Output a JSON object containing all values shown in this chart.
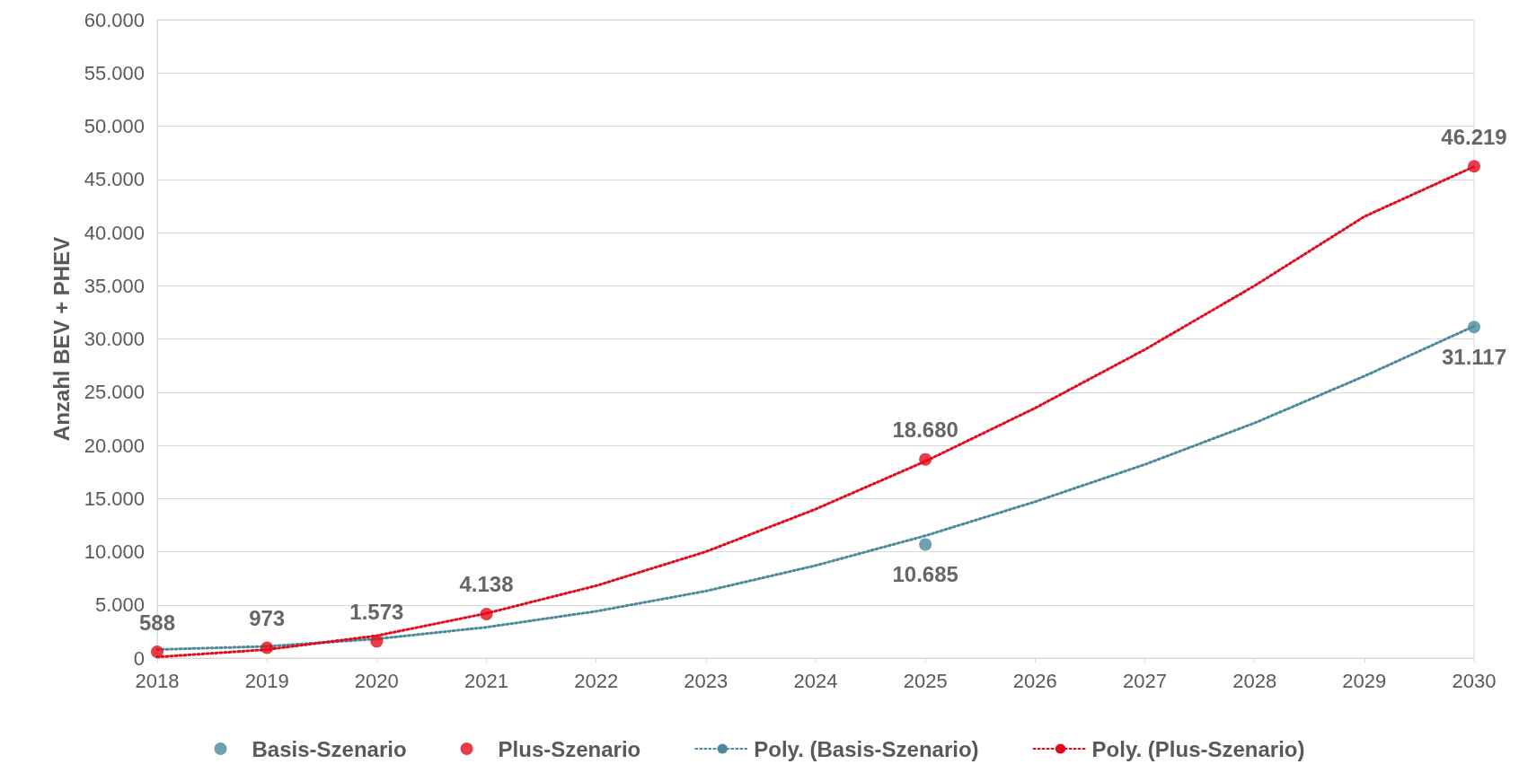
{
  "chart_data": {
    "type": "scatter",
    "ylabel": "Anzahl BEV + PHEV",
    "xlim": [
      2018,
      2030
    ],
    "xticks": [
      2018,
      2019,
      2020,
      2021,
      2022,
      2023,
      2024,
      2025,
      2026,
      2027,
      2028,
      2029,
      2030
    ],
    "ylim": [
      0,
      60000
    ],
    "yticks": [
      {
        "value": 0,
        "label": "0"
      },
      {
        "value": 5000,
        "label": "5.000"
      },
      {
        "value": 10000,
        "label": "10.000"
      },
      {
        "value": 15000,
        "label": "15.000"
      },
      {
        "value": 20000,
        "label": "20.000"
      },
      {
        "value": 25000,
        "label": "25.000"
      },
      {
        "value": 30000,
        "label": "30.000"
      },
      {
        "value": 35000,
        "label": "35.000"
      },
      {
        "value": 40000,
        "label": "40.000"
      },
      {
        "value": 45000,
        "label": "45.000"
      },
      {
        "value": 50000,
        "label": "50.000"
      },
      {
        "value": 55000,
        "label": "55.000"
      },
      {
        "value": 60000,
        "label": "60.000"
      }
    ],
    "grid": "y",
    "legend": "bottom",
    "marker": "circle",
    "series": [
      {
        "name": "Basis-Szenario",
        "color": "#4a8a9c",
        "x": [
          2025,
          2030
        ],
        "values": [
          10685,
          31117
        ],
        "value_labels": [
          "10.685",
          "31.117"
        ]
      },
      {
        "name": "Plus-Szenario",
        "color": "#e30a1c",
        "x": [
          2018,
          2019,
          2020,
          2021,
          2025,
          2030
        ],
        "values": [
          588,
          973,
          1573,
          4138,
          18680,
          46219
        ],
        "value_labels": [
          "588",
          "973",
          "1.573",
          "4.138",
          "18.680",
          "46.219"
        ]
      },
      {
        "name": "Poly. (Basis-Szenario)",
        "type": "line",
        "marker": "none",
        "line_style": "dotted",
        "color": "#4a8a9c",
        "x": [
          2018,
          2019,
          2020,
          2021,
          2022,
          2023,
          2024,
          2025,
          2026,
          2027,
          2028,
          2029,
          2030
        ],
        "values": [
          800,
          1100,
          1800,
          2900,
          4400,
          6300,
          8700,
          11500,
          14700,
          18200,
          22100,
          26500,
          31200
        ]
      },
      {
        "name": "Poly. (Plus-Szenario)",
        "type": "line",
        "marker": "none",
        "line_style": "dotted",
        "color": "#e30a1c",
        "x": [
          2018,
          2019,
          2020,
          2021,
          2022,
          2023,
          2024,
          2025,
          2026,
          2027,
          2028,
          2029,
          2030
        ],
        "values": [
          100,
          800,
          2100,
          4200,
          6800,
          10000,
          14000,
          18500,
          23500,
          29000,
          35000,
          41500,
          46200
        ]
      }
    ]
  }
}
